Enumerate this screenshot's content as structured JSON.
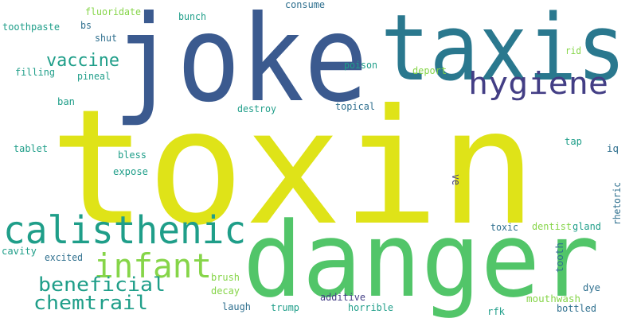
{
  "palette": {
    "yellow": "#dfe318",
    "navy": "#3b5a8f",
    "teal": "#2a788e",
    "purple": "#433e85",
    "green": "#52c569",
    "sea": "#1f9e89",
    "lime": "#86d549",
    "muted": "#2e6f8e"
  },
  "words": [
    {
      "text": "toxin",
      "color": "yellow"
    },
    {
      "text": "joke",
      "color": "navy"
    },
    {
      "text": "taxis",
      "color": "teal"
    },
    {
      "text": "danger",
      "color": "green"
    },
    {
      "text": "hygiene",
      "color": "purple"
    },
    {
      "text": "calisthenic",
      "color": "sea"
    },
    {
      "text": "infant",
      "color": "lime"
    },
    {
      "text": "vaccine",
      "color": "sea"
    },
    {
      "text": "beneficial",
      "color": "sea"
    },
    {
      "text": "chemtrail",
      "color": "sea"
    },
    {
      "text": "fluoridate",
      "color": "lime"
    },
    {
      "text": "toothpaste",
      "color": "sea"
    },
    {
      "text": "bs",
      "color": "muted"
    },
    {
      "text": "bunch",
      "color": "sea"
    },
    {
      "text": "consume",
      "color": "muted"
    },
    {
      "text": "shut",
      "color": "muted"
    },
    {
      "text": "filling",
      "color": "sea"
    },
    {
      "text": "pineal",
      "color": "sea"
    },
    {
      "text": "poison",
      "color": "sea"
    },
    {
      "text": "deport",
      "color": "lime"
    },
    {
      "text": "rid",
      "color": "lime"
    },
    {
      "text": "ban",
      "color": "sea"
    },
    {
      "text": "destroy",
      "color": "sea"
    },
    {
      "text": "topical",
      "color": "muted"
    },
    {
      "text": "tablet",
      "color": "sea"
    },
    {
      "text": "bless",
      "color": "sea"
    },
    {
      "text": "tap",
      "color": "sea"
    },
    {
      "text": "iq",
      "color": "muted"
    },
    {
      "text": "expose",
      "color": "sea"
    },
    {
      "text": "ve",
      "color": "purple"
    },
    {
      "text": "rhetoric",
      "color": "muted"
    },
    {
      "text": "toxic",
      "color": "muted"
    },
    {
      "text": "dentist",
      "color": "lime"
    },
    {
      "text": "gland",
      "color": "sea"
    },
    {
      "text": "cavity",
      "color": "sea"
    },
    {
      "text": "excited",
      "color": "muted"
    },
    {
      "text": "tooth",
      "color": "muted"
    },
    {
      "text": "brush",
      "color": "lime"
    },
    {
      "text": "decay",
      "color": "lime"
    },
    {
      "text": "additive",
      "color": "purple"
    },
    {
      "text": "dye",
      "color": "muted"
    },
    {
      "text": "mouthwash",
      "color": "lime"
    },
    {
      "text": "laugh",
      "color": "muted"
    },
    {
      "text": "trump",
      "color": "sea"
    },
    {
      "text": "horrible",
      "color": "sea"
    },
    {
      "text": "rfk",
      "color": "sea"
    },
    {
      "text": "bottled",
      "color": "muted"
    }
  ]
}
